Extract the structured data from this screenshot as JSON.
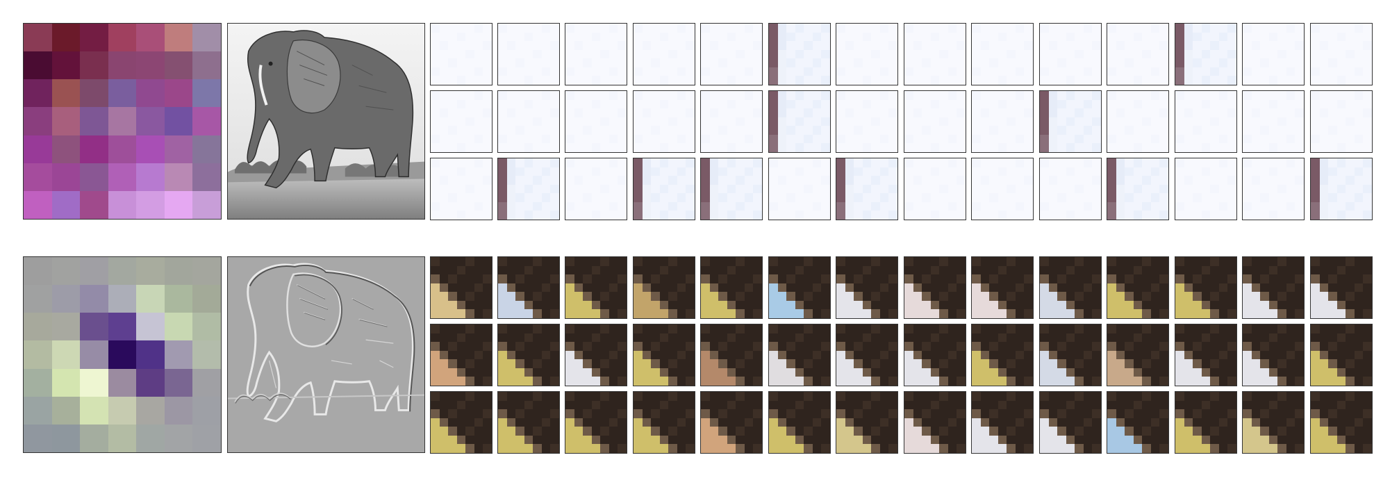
{
  "rows": [
    {
      "kernel_colors": [
        [
          "#8a3b55",
          "#6b1a2a",
          "#731d43",
          "#a0405f",
          "#a94f78",
          "#bf7d7d",
          "#a18ea8"
        ],
        [
          "#4a0c32",
          "#63123a",
          "#7a2f4f",
          "#8a4570",
          "#8c4673",
          "#855071",
          "#8e6f8e"
        ],
        [
          "#70235d",
          "#9a5252",
          "#7d4a6b",
          "#7a5e9e",
          "#904990",
          "#9b478a",
          "#7d77a9"
        ],
        [
          "#8a3e7e",
          "#a85f7d",
          "#7e5795",
          "#a776a2",
          "#8a58a0",
          "#7251a2",
          "#a757a6"
        ],
        [
          "#983a98",
          "#8e527d",
          "#922f86",
          "#9e4f9a",
          "#a84fb5",
          "#a062a3",
          "#86759a"
        ],
        [
          "#a54c9d",
          "#9b4696",
          "#8a5794",
          "#b060b7",
          "#b77ad0",
          "#b989b4",
          "#8d6f9c"
        ],
        [
          "#c060c0",
          "#a06cc6",
          "#a04a8c",
          "#c890d8",
          "#d39de3",
          "#e5a8f2",
          "#c89ed8"
        ]
      ],
      "photo_style": "grayscale",
      "patch_style": "blank"
    },
    {
      "kernel_colors": [
        [
          "#9e9e9e",
          "#a1a2a0",
          "#a09fa4",
          "#a3a8a0",
          "#a8ac9e",
          "#a2a69c",
          "#a4a69e"
        ],
        [
          "#a0a1a1",
          "#9d9ca8",
          "#938ba8",
          "#acaeb8",
          "#c8d6b6",
          "#aab89e",
          "#a3aa98"
        ],
        [
          "#a7a99c",
          "#a8a9a0",
          "#6a4f8e",
          "#5e3f90",
          "#c6c4d4",
          "#c8d8b2",
          "#b0bca5"
        ],
        [
          "#b3bba2",
          "#cdd8b4",
          "#978ca6",
          "#2a0a5c",
          "#503288",
          "#a19ab0",
          "#b3bcab"
        ],
        [
          "#a3b0a0",
          "#d4e5b0",
          "#eef6d2",
          "#9b8ba0",
          "#5e3d84",
          "#7a6692",
          "#a0a0a4"
        ],
        [
          "#9aa4a3",
          "#a7b09b",
          "#d4e3b3",
          "#c6cbb0",
          "#a8a7a2",
          "#9c97a4",
          "#9ea0a6"
        ],
        [
          "#90979f",
          "#8e979e",
          "#a4ad9f",
          "#b3bca4",
          "#a0a7a4",
          "#a2a4a6",
          "#9fa1a6"
        ]
      ],
      "photo_style": "emboss",
      "patch_style": "elephant-edge"
    }
  ],
  "patch_flags_row1": [
    [
      0,
      0,
      0,
      0,
      0,
      1,
      0,
      0,
      0,
      0,
      0,
      1,
      0,
      0
    ],
    [
      0,
      0,
      0,
      0,
      0,
      1,
      0,
      0,
      0,
      1,
      0,
      0,
      0,
      0
    ],
    [
      0,
      1,
      0,
      1,
      1,
      0,
      1,
      0,
      0,
      0,
      1,
      0,
      0,
      1
    ]
  ],
  "patch_variants_row2": [
    [
      "tan-wedge",
      "pale-blue",
      "yellow",
      "tan",
      "yellow",
      "blue-tall",
      "white",
      "white-pink",
      "white-pink",
      "white-blue",
      "yellow",
      "yellow",
      "white",
      "white"
    ],
    [
      "skin",
      "yellow",
      "white",
      "yellow",
      "skin-dark",
      "white-dark",
      "white",
      "white",
      "yellow",
      "white-blue",
      "tan-mid",
      "white",
      "white",
      "yellow"
    ],
    [
      "yellow",
      "yellow",
      "yellow",
      "yellow",
      "skin",
      "yellow",
      "yellow-pale",
      "white-pink",
      "white",
      "white",
      "blue",
      "yellow",
      "yellow-pale",
      "yellow"
    ]
  ]
}
